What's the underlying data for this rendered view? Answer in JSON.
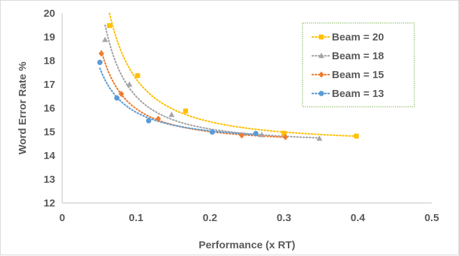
{
  "chart_data": {
    "type": "scatter",
    "title": "",
    "xlabel": "Performance (x RT)",
    "ylabel": "Word Error Rate %",
    "xlim": [
      0,
      0.5
    ],
    "ylim": [
      12,
      20
    ],
    "xticks": [
      "0",
      "0.1",
      "0.2",
      "0.3",
      "0.4",
      "0.5"
    ],
    "yticks": [
      "12",
      "13",
      "14",
      "15",
      "16",
      "17",
      "18",
      "19",
      "20"
    ],
    "grid": false,
    "trendlines": "dotted",
    "legend_position": "top-right",
    "series": [
      {
        "name": "Beam = 20",
        "color": "#ffc000",
        "marker": "square",
        "x": [
          0.064,
          0.102,
          0.167,
          0.3,
          0.398
        ],
        "y": [
          19.48,
          17.37,
          15.88,
          14.94,
          14.82
        ]
      },
      {
        "name": "Beam = 18",
        "color": "#a5a5a5",
        "marker": "triangle",
        "x": [
          0.058,
          0.091,
          0.148,
          0.27,
          0.348
        ],
        "y": [
          18.88,
          17.0,
          15.72,
          14.87,
          14.72
        ]
      },
      {
        "name": "Beam = 15",
        "color": "#ed7d31",
        "marker": "diamond",
        "x": [
          0.053,
          0.08,
          0.13,
          0.243,
          0.302
        ],
        "y": [
          18.3,
          16.6,
          15.55,
          14.85,
          14.78
        ]
      },
      {
        "name": "Beam = 13",
        "color": "#5b9bd5",
        "marker": "circle",
        "x": [
          0.051,
          0.074,
          0.117,
          0.203,
          0.262
        ],
        "y": [
          17.93,
          16.43,
          15.47,
          14.99,
          14.93
        ]
      }
    ]
  }
}
